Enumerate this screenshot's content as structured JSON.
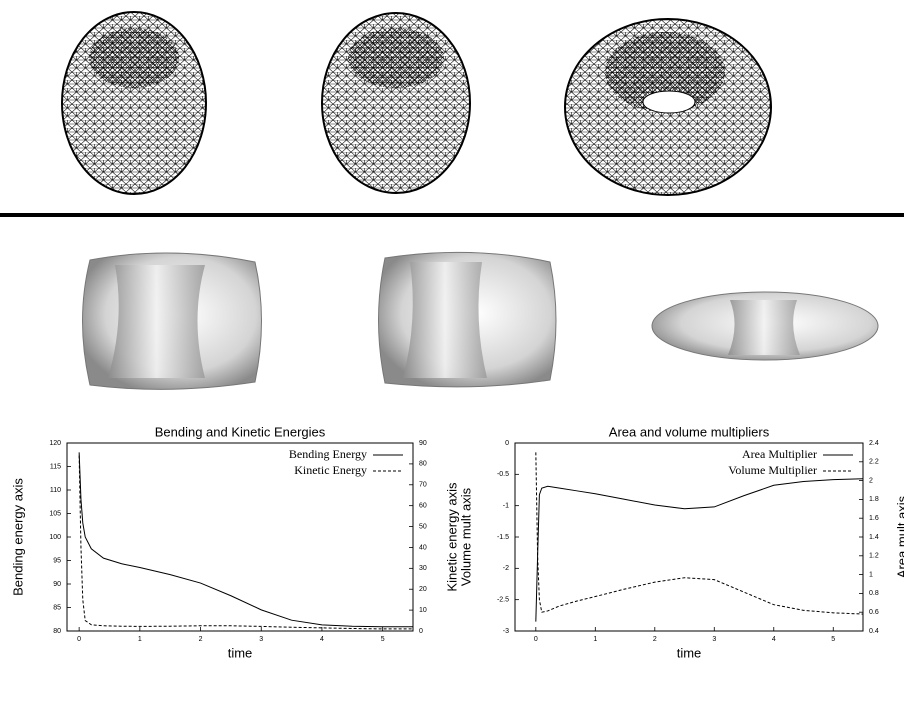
{
  "chart_data": [
    {
      "type": "line",
      "title": "Bending and Kinetic Energies",
      "x_label": "time",
      "y_label": "Bending energy axis",
      "y2_label": "Kinetic energy axis",
      "x": [
        0,
        0.03,
        0.06,
        0.1,
        0.2,
        0.4,
        0.7,
        1,
        1.5,
        2,
        2.5,
        3,
        3.5,
        4,
        4.5,
        5,
        5.5
      ],
      "series": [
        {
          "name": "Bending Energy",
          "color": "#000000",
          "line_style": "solid",
          "values": [
            118,
            108,
            103,
            100,
            97.5,
            95.5,
            94.3,
            93.5,
            92,
            90.2,
            87.5,
            84.5,
            82.3,
            81.3,
            81,
            80.9,
            80.9
          ]
        },
        {
          "name": "Kinetic Energy",
          "color": "#000000",
          "line_style": "dashed",
          "axis": "y2",
          "values": [
            84,
            40,
            15,
            5,
            3,
            2.5,
            2.3,
            2.2,
            2.3,
            2.5,
            2.5,
            2.2,
            1.8,
            1.5,
            1.2,
            1,
            1
          ]
        }
      ],
      "xlim": [
        -0.2,
        5.5
      ],
      "xticks": [
        0,
        1,
        2,
        3,
        4,
        5
      ],
      "ylim": [
        80,
        120
      ],
      "yticks": [
        80,
        85,
        90,
        95,
        100,
        105,
        110,
        115,
        120
      ],
      "y2lim": [
        0,
        90
      ],
      "y2ticks": [
        0,
        10,
        20,
        30,
        40,
        50,
        60,
        70,
        80,
        90
      ],
      "legend": "top-right"
    },
    {
      "type": "line",
      "title": "Area and volume multipliers",
      "x_label": "time",
      "y_label": "Volume mult axis",
      "y2_label": "Area mult axis",
      "x": [
        0,
        0.03,
        0.06,
        0.1,
        0.2,
        0.4,
        0.7,
        1,
        1.5,
        2,
        2.5,
        3,
        3.5,
        4,
        4.5,
        5,
        5.5
      ],
      "series": [
        {
          "name": "Area Multiplier",
          "color": "#000000",
          "line_style": "solid",
          "axis": "y2",
          "values": [
            0.5,
            1.2,
            1.85,
            1.92,
            1.94,
            1.92,
            1.89,
            1.86,
            1.8,
            1.74,
            1.7,
            1.72,
            1.84,
            1.95,
            1.99,
            2.01,
            2.02
          ]
        },
        {
          "name": "Volume Multiplier",
          "color": "#000000",
          "line_style": "dashed",
          "values": [
            -0.15,
            -1.8,
            -2.5,
            -2.7,
            -2.68,
            -2.6,
            -2.52,
            -2.45,
            -2.33,
            -2.22,
            -2.15,
            -2.18,
            -2.38,
            -2.58,
            -2.67,
            -2.71,
            -2.73
          ]
        }
      ],
      "xlim": [
        -0.35,
        5.5
      ],
      "xticks": [
        0,
        1,
        2,
        3,
        4,
        5
      ],
      "ylim": [
        -3,
        0
      ],
      "yticks": [
        -3,
        -2.5,
        -2,
        -1.5,
        -1,
        -0.5,
        0
      ],
      "y2lim": [
        0.4,
        2.4
      ],
      "y2ticks": [
        0.4,
        0.6,
        0.8,
        1,
        1.2,
        1.4,
        1.6,
        1.8,
        2,
        2.2,
        2.4
      ],
      "legend": "top-right"
    }
  ]
}
